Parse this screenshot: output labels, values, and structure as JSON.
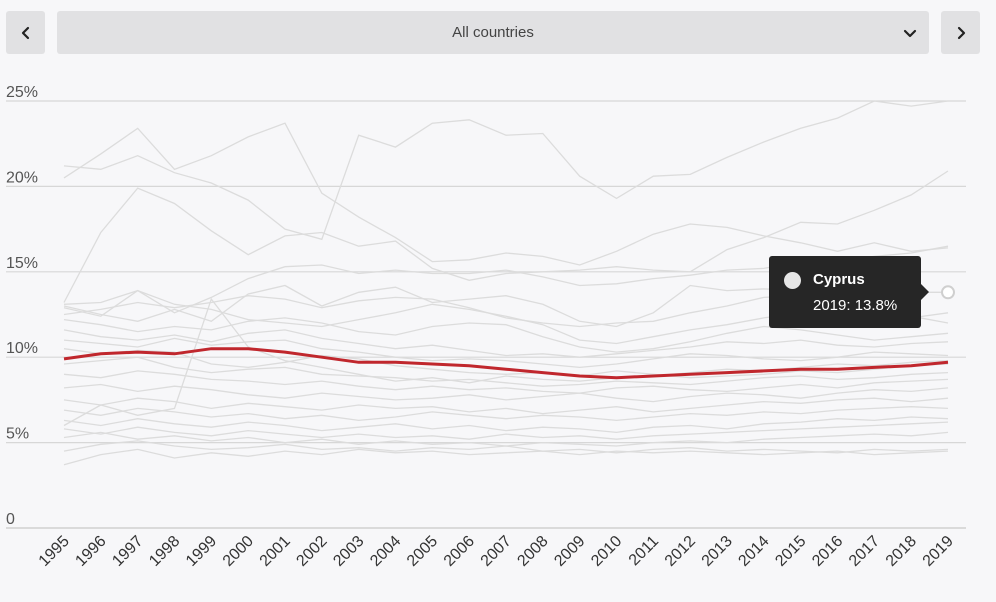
{
  "controls": {
    "selected_country": "All countries"
  },
  "tooltip": {
    "name": "Cyprus",
    "value_text": "2019: 13.8%"
  },
  "chart_data": {
    "type": "line",
    "x": [
      1995,
      1996,
      1997,
      1998,
      1999,
      2000,
      2001,
      2002,
      2003,
      2004,
      2005,
      2006,
      2007,
      2008,
      2009,
      2010,
      2011,
      2012,
      2013,
      2014,
      2015,
      2016,
      2017,
      2018,
      2019
    ],
    "ylim": [
      0,
      25
    ],
    "yticks": [
      0,
      5,
      10,
      15,
      20,
      25
    ],
    "ytick_labels": [
      "0",
      "5%",
      "10%",
      "15%",
      "20%",
      "25%"
    ],
    "grid": true,
    "highlight_color": "#c0272d",
    "background_line_color": "#dcdcdc",
    "highlighted_series": {
      "values": [
        9.9,
        10.2,
        10.3,
        10.2,
        10.5,
        10.5,
        10.3,
        10.0,
        9.7,
        9.7,
        9.6,
        9.5,
        9.3,
        9.1,
        8.9,
        8.8,
        8.9,
        9.0,
        9.1,
        9.2,
        9.3,
        9.3,
        9.4,
        9.5,
        9.7
      ]
    },
    "background_series": [
      {
        "values": [
          20.5,
          21.9,
          23.4,
          21.0,
          21.8,
          22.9,
          23.7,
          19.6,
          18.2,
          17.0,
          15.6,
          15.7,
          16.1,
          15.9,
          15.4,
          16.2,
          17.2,
          17.8,
          17.6,
          17.1,
          16.7,
          16.2,
          16.7,
          16.2,
          16.4
        ]
      },
      {
        "values": [
          21.2,
          21.0,
          21.8,
          20.8,
          20.2,
          19.2,
          17.5,
          16.9,
          23.0,
          22.3,
          23.7,
          23.9,
          23.0,
          23.1,
          20.6,
          19.3,
          20.6,
          20.7,
          21.7,
          22.6,
          23.4,
          24.0,
          25.0,
          24.7,
          25.0
        ]
      },
      {
        "values": [
          13.2,
          17.3,
          19.9,
          19.0,
          17.4,
          16.0,
          17.1,
          17.3,
          16.5,
          16.8,
          15.2,
          14.5,
          14.9,
          15.0,
          15.1,
          15.3,
          15.1,
          15.0,
          16.3,
          17.0,
          17.9,
          17.8,
          18.6,
          19.5,
          20.9
        ]
      },
      {
        "values": [
          13.1,
          13.2,
          13.9,
          12.6,
          13.5,
          14.6,
          15.3,
          15.4,
          14.9,
          15.1,
          14.9,
          14.9,
          15.1,
          14.7,
          14.2,
          14.3,
          14.6,
          14.8,
          15.1,
          15.2,
          15.6,
          15.6,
          15.9,
          16.1,
          16.5
        ]
      },
      {
        "values": [
          13.0,
          12.5,
          12.1,
          12.8,
          12.1,
          13.7,
          14.2,
          13.0,
          13.8,
          14.1,
          13.2,
          13.4,
          13.6,
          13.1,
          12.1,
          11.8,
          12.6,
          14.2,
          13.9,
          14.0,
          13.9,
          13.5,
          13.6,
          13.8,
          13.8
        ]
      },
      {
        "values": [
          12.5,
          12.8,
          13.2,
          12.9,
          13.2,
          13.6,
          13.4,
          12.9,
          13.3,
          13.5,
          13.4,
          12.9,
          12.3,
          12.0,
          11.8,
          12.0,
          12.1,
          12.6,
          13.0,
          13.5,
          13.6,
          13.3,
          12.9,
          12.4,
          12.0
        ]
      },
      {
        "values": [
          12.2,
          11.9,
          11.5,
          11.8,
          11.6,
          12.1,
          12.3,
          12.0,
          11.5,
          11.3,
          11.8,
          12.0,
          11.9,
          11.2,
          10.6,
          10.3,
          10.5,
          10.9,
          11.4,
          11.8,
          11.6,
          11.3,
          11.0,
          11.2,
          11.4
        ]
      },
      {
        "values": [
          11.6,
          11.2,
          11.0,
          11.3,
          10.9,
          11.4,
          11.6,
          11.1,
          10.8,
          10.5,
          10.7,
          10.4,
          10.1,
          10.2,
          10.0,
          10.2,
          10.4,
          10.6,
          10.9,
          10.8,
          11.0,
          10.7,
          10.6,
          10.8,
          10.9
        ]
      },
      {
        "values": [
          11.0,
          10.8,
          10.6,
          11.1,
          10.7,
          10.9,
          11.0,
          10.5,
          10.3,
          10.0,
          9.8,
          9.9,
          9.8,
          9.6,
          9.4,
          9.6,
          9.9,
          10.2,
          10.1,
          9.9,
          9.8,
          10.0,
          10.3,
          10.2,
          10.1
        ]
      },
      {
        "values": [
          10.5,
          10.2,
          10.4,
          10.3,
          9.6,
          9.4,
          9.7,
          10.1,
          9.9,
          9.5,
          9.3,
          9.1,
          9.0,
          9.1,
          8.9,
          9.2,
          9.0,
          8.8,
          8.9,
          9.0,
          9.2,
          9.1,
          9.3,
          9.5,
          9.6
        ]
      },
      {
        "values": [
          9.6,
          9.8,
          10.0,
          9.4,
          9.1,
          9.3,
          9.4,
          9.0,
          8.9,
          8.8,
          8.6,
          8.7,
          8.5,
          8.3,
          8.4,
          8.6,
          8.5,
          8.4,
          8.6,
          8.8,
          8.9,
          8.7,
          8.8,
          9.0,
          9.1
        ]
      },
      {
        "values": [
          9.0,
          8.8,
          9.2,
          9.0,
          8.7,
          8.6,
          8.4,
          8.6,
          8.3,
          8.1,
          8.3,
          8.1,
          8.2,
          8.0,
          7.9,
          8.2,
          8.3,
          8.1,
          8.0,
          8.2,
          8.4,
          8.2,
          8.5,
          8.6,
          8.7
        ]
      },
      {
        "values": [
          8.2,
          8.4,
          8.0,
          8.3,
          8.1,
          7.8,
          7.6,
          7.9,
          7.7,
          7.5,
          7.6,
          7.8,
          7.5,
          7.7,
          7.9,
          7.6,
          7.4,
          7.7,
          7.9,
          7.8,
          7.6,
          7.9,
          8.1,
          8.0,
          8.2
        ]
      },
      {
        "values": [
          7.5,
          7.2,
          7.6,
          7.4,
          7.0,
          7.3,
          7.1,
          6.9,
          7.2,
          7.0,
          7.1,
          6.8,
          7.0,
          6.7,
          6.9,
          7.1,
          6.8,
          7.0,
          7.2,
          7.4,
          7.3,
          7.5,
          7.6,
          7.4,
          7.6
        ]
      },
      {
        "values": [
          6.9,
          6.6,
          7.0,
          6.8,
          6.5,
          6.7,
          6.4,
          6.6,
          6.3,
          6.5,
          6.8,
          6.6,
          6.4,
          6.6,
          6.5,
          6.3,
          6.5,
          6.7,
          6.6,
          6.8,
          6.7,
          6.9,
          7.0,
          7.1,
          7.0
        ]
      },
      {
        "values": [
          6.3,
          6.0,
          6.4,
          6.1,
          5.9,
          6.2,
          6.0,
          5.7,
          5.9,
          6.1,
          5.8,
          6.0,
          5.7,
          5.9,
          5.8,
          5.6,
          5.9,
          6.0,
          5.8,
          6.1,
          6.2,
          6.4,
          6.3,
          6.5,
          6.4
        ]
      },
      {
        "values": [
          5.8,
          5.5,
          5.9,
          5.6,
          5.4,
          5.7,
          5.5,
          5.3,
          5.5,
          5.3,
          5.4,
          5.2,
          5.5,
          5.3,
          5.4,
          5.2,
          5.4,
          5.5,
          5.6,
          5.7,
          5.8,
          5.9,
          6.0,
          6.1,
          6.2
        ]
      },
      {
        "values": [
          5.3,
          5.6,
          5.2,
          5.4,
          5.1,
          5.3,
          5.0,
          5.2,
          4.9,
          5.1,
          4.9,
          5.0,
          4.8,
          5.0,
          4.9,
          4.8,
          5.0,
          5.1,
          5.0,
          5.2,
          5.3,
          5.4,
          5.5,
          5.4,
          5.6
        ]
      },
      {
        "values": [
          4.5,
          4.9,
          5.1,
          4.8,
          4.6,
          4.7,
          4.9,
          4.6,
          4.7,
          4.5,
          4.7,
          4.6,
          4.8,
          4.5,
          4.6,
          4.4,
          4.6,
          4.7,
          4.5,
          4.6,
          4.5,
          4.4,
          4.6,
          4.5,
          4.6
        ]
      },
      {
        "values": [
          3.7,
          4.3,
          4.6,
          4.1,
          4.4,
          4.2,
          4.5,
          4.3,
          4.6,
          4.4,
          4.5,
          4.3,
          4.4,
          4.5,
          4.3,
          4.5,
          4.4,
          4.5,
          4.4,
          4.3,
          4.4,
          4.5,
          4.3,
          4.4,
          4.5
        ]
      },
      {
        "values": [
          12.9,
          12.4,
          13.9,
          13.1,
          12.8,
          12.2,
          12.0,
          11.8,
          12.2,
          12.6,
          13.1,
          12.8,
          12.4,
          11.9,
          11.0,
          10.8,
          11.2,
          11.6,
          11.9,
          12.3,
          12.6,
          12.8,
          12.5,
          12.3,
          12.6
        ]
      },
      {
        "values": [
          6.0,
          7.2,
          6.6,
          7.0,
          13.4,
          10.6,
          9.8,
          9.4,
          9.0,
          8.6,
          8.8,
          8.5,
          8.9,
          8.7,
          8.6,
          8.8,
          8.9,
          9.1,
          9.3,
          9.2,
          9.4,
          9.6,
          9.5,
          9.7,
          9.8
        ]
      }
    ]
  }
}
